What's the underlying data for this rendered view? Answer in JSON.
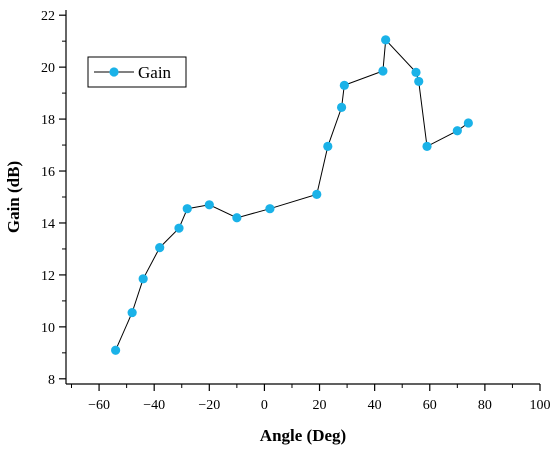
{
  "chart_data": {
    "type": "line",
    "xlabel": "Angle (Deg)",
    "ylabel": "Gain (dB)",
    "xlim": [
      -72,
      100
    ],
    "ylim": [
      7.8,
      22.2
    ],
    "xticks": [
      -60,
      -40,
      -20,
      0,
      20,
      40,
      60,
      80,
      100
    ],
    "yticks": [
      8,
      10,
      12,
      14,
      16,
      18,
      20,
      22
    ],
    "legend_position": "top-left",
    "grid": false,
    "series": [
      {
        "name": "Gain",
        "color": "#1ab2e8",
        "line_color": "#000000",
        "marker": "circle",
        "x": [
          -54,
          -48,
          -44,
          -38,
          -31,
          -28,
          -20,
          -10,
          2,
          19,
          23,
          28,
          29,
          43,
          44,
          55,
          56,
          59,
          70,
          74
        ],
        "y": [
          9.1,
          10.55,
          11.85,
          13.05,
          13.8,
          14.55,
          14.7,
          14.2,
          14.55,
          15.1,
          16.95,
          18.45,
          19.3,
          19.85,
          21.05,
          19.8,
          19.45,
          16.95,
          17.55,
          17.85
        ]
      }
    ]
  }
}
